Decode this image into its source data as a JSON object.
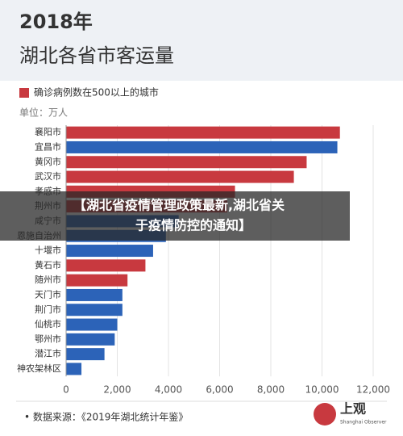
{
  "chart_data": {
    "type": "bar",
    "orientation": "horizontal",
    "title": "2018年",
    "subtitle": "湖北各省市客运量",
    "unit_label": "单位：万人",
    "source": "• 数据来源：《2019年湖北统计年鉴》",
    "categories": [
      "襄阳市",
      "宜昌市",
      "黄冈市",
      "武汉市",
      "孝感市",
      "荆州市",
      "咸宁市",
      "恩施自治州",
      "十堰市",
      "黄石市",
      "随州市",
      "天门市",
      "荆门市",
      "仙桃市",
      "鄂州市",
      "潜江市",
      "神农架林区"
    ],
    "series": [
      {
        "name": "确诊病例数在500以上的城市",
        "color": "#c8393f",
        "values": [
          10700,
          null,
          9400,
          8900,
          6600,
          6300,
          null,
          null,
          null,
          3100,
          2400,
          null,
          null,
          null,
          null,
          null,
          null
        ]
      },
      {
        "color": "#2c63b8",
        "values": [
          null,
          10600,
          null,
          null,
          null,
          null,
          4400,
          3900,
          3400,
          null,
          null,
          2200,
          2200,
          2000,
          1900,
          1500,
          600
        ]
      }
    ],
    "xlim": [
      0,
      12000
    ],
    "xticks": [
      0,
      {
        "value": 2000,
        "label": "2,000"
      },
      {
        "value": 4000,
        "label": "4,000"
      },
      {
        "value": 6000,
        "label": "6,000"
      },
      {
        "value": 8000,
        "label": "8,000"
      },
      {
        "value": 10000,
        "label": "10,000"
      },
      {
        "value": 12000,
        "label": "12,000"
      }
    ],
    "grid": true
  },
  "banner": {
    "line1": "【湖北省疫情管理政策最新,湖北省关",
    "line2": "于疫情防控的通知】"
  },
  "logo": {
    "name": "上观",
    "subtitle": "Shanghai Observer"
  }
}
